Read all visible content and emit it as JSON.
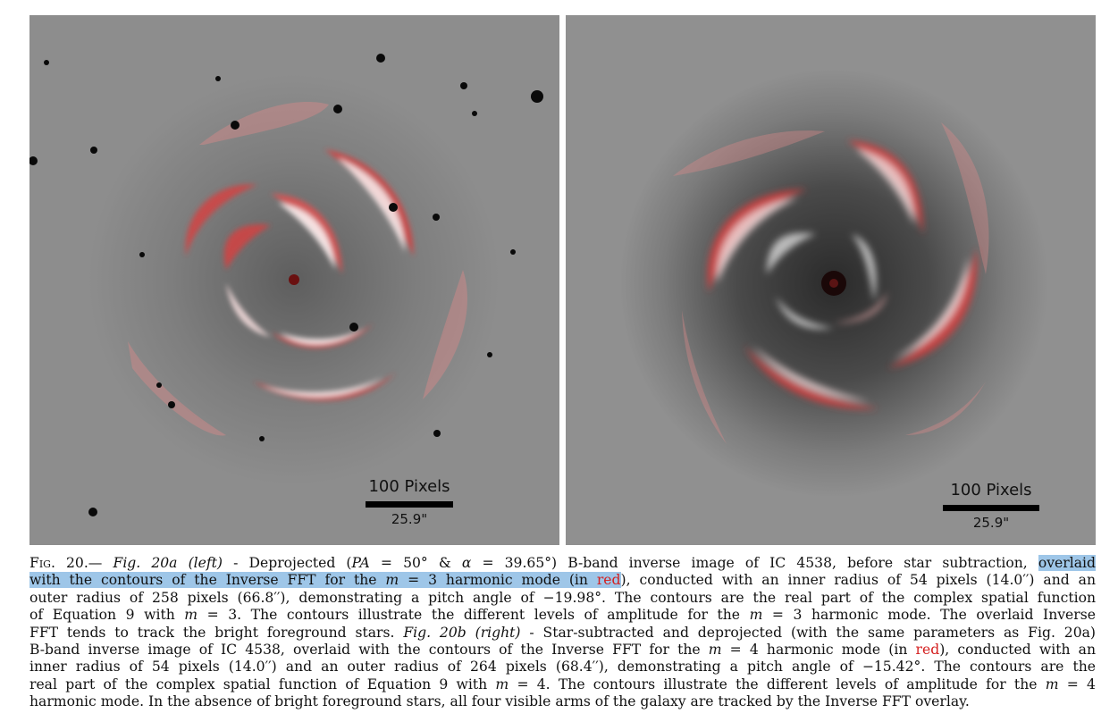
{
  "figure": {
    "panel_a": {
      "scale_label": "100 Pixels",
      "scale_arcsec": "25.9\""
    },
    "panel_b": {
      "scale_label": "100 Pixels",
      "scale_arcsec": "25.9\""
    }
  },
  "caption": {
    "lines": [
      [
        {
          "t": "Fig. 20.— ",
          "c": "sc"
        },
        {
          "t": "Fig. 20a (left)",
          "c": "it"
        },
        {
          "t": " - Deprojected ("
        },
        {
          "t": "PA",
          "c": "it"
        },
        {
          "t": " = 50° & "
        },
        {
          "t": "α",
          "c": "it"
        },
        {
          "t": " = 39.65°) B-band inverse image of IC 4538, before star subtraction, "
        },
        {
          "t": "overlaid",
          "c": "hl"
        }
      ],
      [
        {
          "t": "with the contours of the Inverse FFT for the ",
          "c": "hl"
        },
        {
          "t": "m",
          "c": "hl it"
        },
        {
          "t": " = 3 harmonic mode (in ",
          "c": "hl"
        },
        {
          "t": "red",
          "c": "hl red"
        },
        {
          "t": "), conducted with an inner radius of 54 pixels (14.0′′) and an"
        }
      ],
      [
        {
          "t": "outer radius of 258 pixels (66.8′′), demonstrating a pitch angle of −19.98°. The contours are the real part of the complex spatial function"
        }
      ],
      [
        {
          "t": "of Equation 9 with "
        },
        {
          "t": "m",
          "c": "it"
        },
        {
          "t": " = 3. The contours illustrate the different levels of amplitude for the "
        },
        {
          "t": "m",
          "c": "it"
        },
        {
          "t": " = 3 harmonic mode. The overlaid Inverse"
        }
      ],
      [
        {
          "t": "FFT tends to track the bright foreground stars. "
        },
        {
          "t": "Fig. 20b (right)",
          "c": "it"
        },
        {
          "t": " - Star-subtracted and deprojected (with the same parameters as Fig. 20a)"
        }
      ],
      [
        {
          "t": "B-band inverse image of IC 4538, overlaid with the contours of the Inverse FFT for the "
        },
        {
          "t": "m",
          "c": "it"
        },
        {
          "t": " = 4 harmonic mode (in "
        },
        {
          "t": "red",
          "c": "red"
        },
        {
          "t": "), conducted with an"
        }
      ],
      [
        {
          "t": "inner radius of 54 pixels (14.0′′) and an outer radius of 264 pixels (68.4′′), demonstrating a pitch angle of −15.42°. The contours are the"
        }
      ],
      [
        {
          "t": "real part of the complex spatial function of Equation 9 with "
        },
        {
          "t": "m",
          "c": "it"
        },
        {
          "t": " = 4. The contours illustrate the different levels of amplitude for the "
        },
        {
          "t": "m",
          "c": "it"
        },
        {
          "t": " = 4"
        }
      ],
      [
        {
          "t": "harmonic mode. In the absence of bright foreground stars, all four visible arms of the galaxy are tracked by the Inverse FFT overlay."
        }
      ]
    ]
  }
}
